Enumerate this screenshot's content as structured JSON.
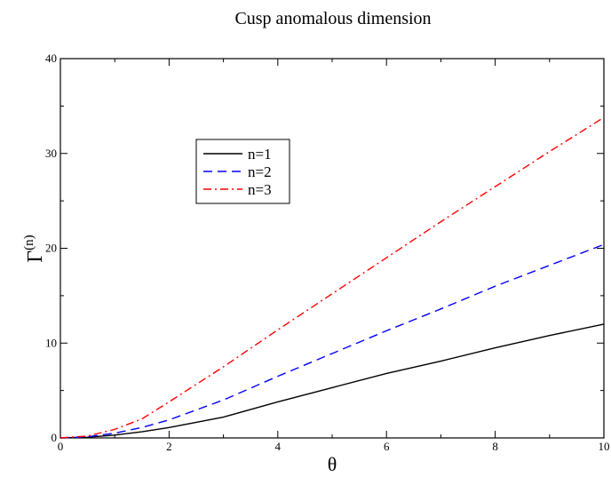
{
  "chart_data": {
    "type": "line",
    "title": "Cusp anomalous dimension",
    "xlabel": "θ",
    "ylabel": "Γ",
    "ylabel_superscript": "(n)",
    "xlim": [
      0,
      10
    ],
    "ylim": [
      0,
      40
    ],
    "xticks": [
      0,
      2,
      4,
      6,
      8,
      10
    ],
    "yticks": [
      0,
      10,
      20,
      30,
      40
    ],
    "grid": false,
    "legend_position": "top-left",
    "series": [
      {
        "name": "n=1",
        "color": "#000000",
        "dash": "solid",
        "x": [
          0,
          0.5,
          1,
          1.5,
          2,
          3,
          4,
          5,
          6,
          7,
          8,
          9,
          10
        ],
        "y": [
          0,
          0.08,
          0.3,
          0.65,
          1.1,
          2.2,
          3.8,
          5.3,
          6.8,
          8.1,
          9.5,
          10.8,
          12
        ]
      },
      {
        "name": "n=2",
        "color": "#0000ff",
        "dash": "dashed",
        "x": [
          0,
          0.5,
          1,
          1.5,
          2,
          3,
          4,
          5,
          6,
          7,
          8,
          9,
          10
        ],
        "y": [
          0,
          0.12,
          0.5,
          1.1,
          1.9,
          4,
          6.5,
          8.9,
          11.3,
          13.6,
          16,
          18.2,
          20.4
        ]
      },
      {
        "name": "n=3",
        "color": "#ff0000",
        "dash": "dashdot",
        "x": [
          0,
          0.5,
          1,
          1.5,
          2,
          3,
          4,
          5,
          6,
          7,
          8,
          9,
          10
        ],
        "y": [
          0,
          0.2,
          0.9,
          2,
          3.8,
          7.5,
          11.4,
          15.2,
          19,
          22.8,
          26.5,
          30.2,
          33.8
        ]
      }
    ]
  }
}
